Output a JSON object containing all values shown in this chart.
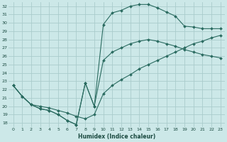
{
  "xlabel": "Humidex (Indice chaleur)",
  "background_color": "#cce8e8",
  "grid_color": "#aacccc",
  "line_color": "#2a6b60",
  "xlim": [
    -0.5,
    23.5
  ],
  "ylim": [
    17.5,
    32.5
  ],
  "xticks": [
    0,
    1,
    2,
    3,
    4,
    5,
    6,
    7,
    8,
    9,
    10,
    11,
    12,
    13,
    14,
    15,
    16,
    17,
    18,
    19,
    20,
    21,
    22,
    23
  ],
  "yticks": [
    18,
    19,
    20,
    21,
    22,
    23,
    24,
    25,
    26,
    27,
    28,
    29,
    30,
    31,
    32
  ],
  "line1_x": [
    0,
    1,
    2,
    3,
    4,
    5,
    6,
    7,
    8,
    9,
    10,
    11,
    12,
    13,
    14,
    15,
    16,
    17,
    18,
    19,
    20,
    21,
    22,
    23
  ],
  "line1_y": [
    22.5,
    21.2,
    20.2,
    19.7,
    19.5,
    19.0,
    18.3,
    17.8,
    22.8,
    20.0,
    29.8,
    31.2,
    31.5,
    32.0,
    32.2,
    32.2,
    31.8,
    31.3,
    30.8,
    29.6,
    29.5,
    29.3,
    29.3,
    29.3
  ],
  "line2_x": [
    0,
    1,
    2,
    3,
    4,
    5,
    6,
    7,
    8,
    9,
    10,
    11,
    12,
    13,
    14,
    15,
    16,
    17,
    18,
    19,
    20,
    21,
    22,
    23
  ],
  "line2_y": [
    22.5,
    21.2,
    20.2,
    19.7,
    19.5,
    19.0,
    18.3,
    17.8,
    22.8,
    20.0,
    25.5,
    26.5,
    27.0,
    27.5,
    27.8,
    28.0,
    27.8,
    27.5,
    27.2,
    26.8,
    26.5,
    26.2,
    26.0,
    25.8
  ],
  "line3_x": [
    0,
    1,
    2,
    3,
    4,
    5,
    6,
    7,
    8,
    9,
    10,
    11,
    12,
    13,
    14,
    15,
    16,
    17,
    18,
    19,
    20,
    21,
    22,
    23
  ],
  "line3_y": [
    22.5,
    21.2,
    20.2,
    20.0,
    19.8,
    19.5,
    19.2,
    18.8,
    18.5,
    19.0,
    21.5,
    22.5,
    23.2,
    23.8,
    24.5,
    25.0,
    25.5,
    26.0,
    26.5,
    27.0,
    27.5,
    27.8,
    28.2,
    28.5
  ]
}
